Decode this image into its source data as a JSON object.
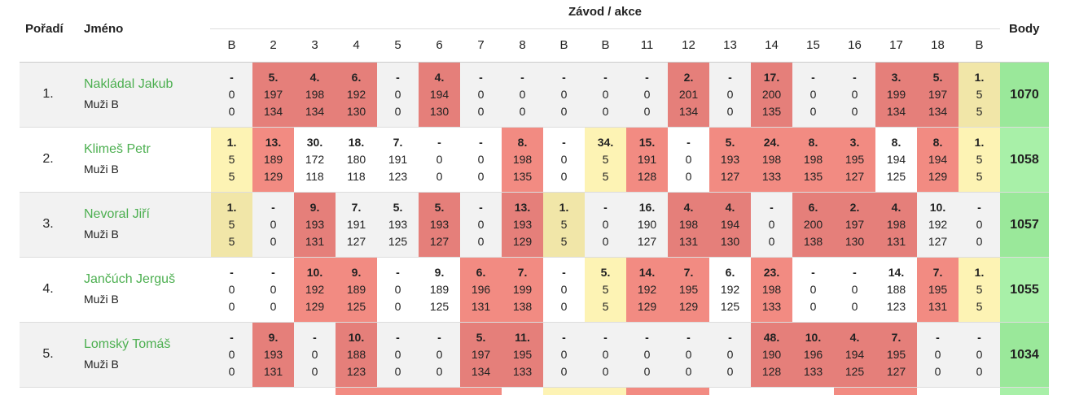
{
  "header": {
    "rank_label": "Pořadí",
    "name_label": "Jméno",
    "races_label": "Závod / akce",
    "points_label": "Body",
    "race_columns": [
      "B",
      "2",
      "3",
      "4",
      "5",
      "6",
      "7",
      "8",
      "B",
      "B",
      "11",
      "12",
      "13",
      "14",
      "15",
      "16",
      "17",
      "18",
      "B"
    ]
  },
  "colors": {
    "name_link": "#4caf50",
    "top_place": "#f28b82",
    "bonus": "#fdf3b4",
    "total": "#a8f0a8"
  },
  "rows": [
    {
      "rank": "1.",
      "name": "Nakládal Jakub",
      "category": "Muži B",
      "total": "1070",
      "cells": [
        {
          "p": "-",
          "a": "0",
          "b": "0",
          "c": ""
        },
        {
          "p": "5.",
          "a": "197",
          "b": "134",
          "c": "red"
        },
        {
          "p": "4.",
          "a": "198",
          "b": "134",
          "c": "red"
        },
        {
          "p": "6.",
          "a": "192",
          "b": "130",
          "c": "red"
        },
        {
          "p": "-",
          "a": "0",
          "b": "0",
          "c": ""
        },
        {
          "p": "4.",
          "a": "194",
          "b": "130",
          "c": "red"
        },
        {
          "p": "-",
          "a": "0",
          "b": "0",
          "c": ""
        },
        {
          "p": "-",
          "a": "0",
          "b": "0",
          "c": ""
        },
        {
          "p": "-",
          "a": "0",
          "b": "0",
          "c": ""
        },
        {
          "p": "-",
          "a": "0",
          "b": "0",
          "c": ""
        },
        {
          "p": "-",
          "a": "0",
          "b": "0",
          "c": ""
        },
        {
          "p": "2.",
          "a": "201",
          "b": "134",
          "c": "red"
        },
        {
          "p": "-",
          "a": "0",
          "b": "0",
          "c": ""
        },
        {
          "p": "17.",
          "a": "200",
          "b": "135",
          "c": "red"
        },
        {
          "p": "-",
          "a": "0",
          "b": "0",
          "c": ""
        },
        {
          "p": "-",
          "a": "0",
          "b": "0",
          "c": ""
        },
        {
          "p": "3.",
          "a": "199",
          "b": "134",
          "c": "red"
        },
        {
          "p": "5.",
          "a": "197",
          "b": "134",
          "c": "red"
        },
        {
          "p": "1.",
          "a": "5",
          "b": "5",
          "c": "yellow"
        }
      ]
    },
    {
      "rank": "2.",
      "name": "Klimeš Petr",
      "category": "Muži B",
      "total": "1058",
      "cells": [
        {
          "p": "1.",
          "a": "5",
          "b": "5",
          "c": "yellow"
        },
        {
          "p": "13.",
          "a": "189",
          "b": "129",
          "c": "red"
        },
        {
          "p": "30.",
          "a": "172",
          "b": "118",
          "c": ""
        },
        {
          "p": "18.",
          "a": "180",
          "b": "118",
          "c": ""
        },
        {
          "p": "7.",
          "a": "191",
          "b": "123",
          "c": ""
        },
        {
          "p": "-",
          "a": "0",
          "b": "0",
          "c": ""
        },
        {
          "p": "-",
          "a": "0",
          "b": "0",
          "c": ""
        },
        {
          "p": "8.",
          "a": "198",
          "b": "135",
          "c": "red"
        },
        {
          "p": "-",
          "a": "0",
          "b": "0",
          "c": ""
        },
        {
          "p": "34.",
          "a": "5",
          "b": "5",
          "c": "yellow"
        },
        {
          "p": "15.",
          "a": "191",
          "b": "128",
          "c": "red"
        },
        {
          "p": "-",
          "a": "0",
          "b": "0",
          "c": ""
        },
        {
          "p": "5.",
          "a": "193",
          "b": "127",
          "c": "red"
        },
        {
          "p": "24.",
          "a": "198",
          "b": "133",
          "c": "red"
        },
        {
          "p": "8.",
          "a": "198",
          "b": "135",
          "c": "red"
        },
        {
          "p": "3.",
          "a": "195",
          "b": "127",
          "c": "red"
        },
        {
          "p": "8.",
          "a": "194",
          "b": "125",
          "c": ""
        },
        {
          "p": "8.",
          "a": "194",
          "b": "129",
          "c": "red"
        },
        {
          "p": "1.",
          "a": "5",
          "b": "5",
          "c": "yellow"
        }
      ]
    },
    {
      "rank": "3.",
      "name": "Nevoral Jiří",
      "category": "Muži B",
      "total": "1057",
      "cells": [
        {
          "p": "1.",
          "a": "5",
          "b": "5",
          "c": "yellow"
        },
        {
          "p": "-",
          "a": "0",
          "b": "0",
          "c": ""
        },
        {
          "p": "9.",
          "a": "193",
          "b": "131",
          "c": "red"
        },
        {
          "p": "7.",
          "a": "191",
          "b": "127",
          "c": ""
        },
        {
          "p": "5.",
          "a": "193",
          "b": "125",
          "c": ""
        },
        {
          "p": "5.",
          "a": "193",
          "b": "127",
          "c": "red"
        },
        {
          "p": "-",
          "a": "0",
          "b": "0",
          "c": ""
        },
        {
          "p": "13.",
          "a": "193",
          "b": "129",
          "c": "red"
        },
        {
          "p": "1.",
          "a": "5",
          "b": "5",
          "c": "yellow"
        },
        {
          "p": "-",
          "a": "0",
          "b": "0",
          "c": ""
        },
        {
          "p": "16.",
          "a": "190",
          "b": "127",
          "c": ""
        },
        {
          "p": "4.",
          "a": "198",
          "b": "131",
          "c": "red"
        },
        {
          "p": "4.",
          "a": "194",
          "b": "130",
          "c": "red"
        },
        {
          "p": "-",
          "a": "0",
          "b": "0",
          "c": ""
        },
        {
          "p": "6.",
          "a": "200",
          "b": "138",
          "c": "red"
        },
        {
          "p": "2.",
          "a": "197",
          "b": "130",
          "c": "red"
        },
        {
          "p": "4.",
          "a": "198",
          "b": "131",
          "c": "red"
        },
        {
          "p": "10.",
          "a": "192",
          "b": "127",
          "c": ""
        },
        {
          "p": "-",
          "a": "0",
          "b": "0",
          "c": ""
        }
      ]
    },
    {
      "rank": "4.",
      "name": "Jančúch Jerguš",
      "category": "Muži B",
      "total": "1055",
      "cells": [
        {
          "p": "-",
          "a": "0",
          "b": "0",
          "c": ""
        },
        {
          "p": "-",
          "a": "0",
          "b": "0",
          "c": ""
        },
        {
          "p": "10.",
          "a": "192",
          "b": "129",
          "c": "red"
        },
        {
          "p": "9.",
          "a": "189",
          "b": "125",
          "c": "red"
        },
        {
          "p": "-",
          "a": "0",
          "b": "0",
          "c": ""
        },
        {
          "p": "9.",
          "a": "189",
          "b": "125",
          "c": ""
        },
        {
          "p": "6.",
          "a": "196",
          "b": "131",
          "c": "red"
        },
        {
          "p": "7.",
          "a": "199",
          "b": "138",
          "c": "red"
        },
        {
          "p": "-",
          "a": "0",
          "b": "0",
          "c": ""
        },
        {
          "p": "5.",
          "a": "5",
          "b": "5",
          "c": "yellow"
        },
        {
          "p": "14.",
          "a": "192",
          "b": "129",
          "c": "red"
        },
        {
          "p": "7.",
          "a": "195",
          "b": "129",
          "c": "red"
        },
        {
          "p": "6.",
          "a": "192",
          "b": "125",
          "c": ""
        },
        {
          "p": "23.",
          "a": "198",
          "b": "133",
          "c": "red"
        },
        {
          "p": "-",
          "a": "0",
          "b": "0",
          "c": ""
        },
        {
          "p": "-",
          "a": "0",
          "b": "0",
          "c": ""
        },
        {
          "p": "14.",
          "a": "188",
          "b": "123",
          "c": ""
        },
        {
          "p": "7.",
          "a": "195",
          "b": "131",
          "c": "red"
        },
        {
          "p": "1.",
          "a": "5",
          "b": "5",
          "c": "yellow"
        }
      ]
    },
    {
      "rank": "5.",
      "name": "Lomský Tomáš",
      "category": "Muži B",
      "total": "1034",
      "cells": [
        {
          "p": "-",
          "a": "0",
          "b": "0",
          "c": ""
        },
        {
          "p": "9.",
          "a": "193",
          "b": "131",
          "c": "red"
        },
        {
          "p": "-",
          "a": "0",
          "b": "0",
          "c": ""
        },
        {
          "p": "10.",
          "a": "188",
          "b": "123",
          "c": "red"
        },
        {
          "p": "-",
          "a": "0",
          "b": "0",
          "c": ""
        },
        {
          "p": "-",
          "a": "0",
          "b": "0",
          "c": ""
        },
        {
          "p": "5.",
          "a": "197",
          "b": "134",
          "c": "red"
        },
        {
          "p": "11.",
          "a": "195",
          "b": "133",
          "c": "red"
        },
        {
          "p": "-",
          "a": "0",
          "b": "0",
          "c": ""
        },
        {
          "p": "-",
          "a": "0",
          "b": "0",
          "c": ""
        },
        {
          "p": "-",
          "a": "0",
          "b": "0",
          "c": ""
        },
        {
          "p": "-",
          "a": "0",
          "b": "0",
          "c": ""
        },
        {
          "p": "-",
          "a": "0",
          "b": "0",
          "c": ""
        },
        {
          "p": "48.",
          "a": "190",
          "b": "128",
          "c": "red"
        },
        {
          "p": "10.",
          "a": "196",
          "b": "133",
          "c": "red"
        },
        {
          "p": "4.",
          "a": "194",
          "b": "125",
          "c": "red"
        },
        {
          "p": "7.",
          "a": "195",
          "b": "127",
          "c": "red"
        },
        {
          "p": "-",
          "a": "0",
          "b": "0",
          "c": ""
        },
        {
          "p": "-",
          "a": "0",
          "b": "0",
          "c": ""
        }
      ]
    }
  ]
}
